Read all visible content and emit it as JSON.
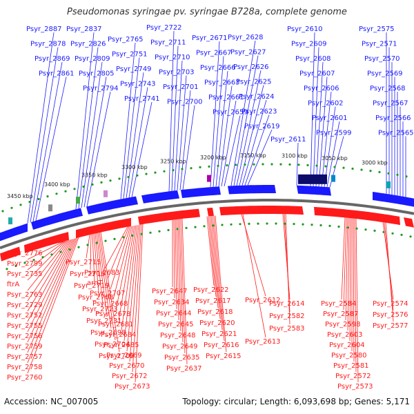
{
  "title": "Pseudomonas syringae pv. syringae B728a, complete genome",
  "accession": "Accession: NC_007005",
  "topology": "Topology: circular; Length: 6,093,698 bp; Genes: 5,171",
  "colors": {
    "forward": "#1a1aff",
    "reverse": "#ff1a1a",
    "backbone": "#999999",
    "ticks": "#1f9a1f"
  },
  "scale_labels": [
    "3450 kbp",
    "3400 kbp",
    "3350 kbp",
    "3300 kbp",
    "3250 kbp",
    "3200 kbp",
    "3150 kbp",
    "3100 kbp",
    "3050 kbp",
    "3000 kbp"
  ],
  "blue_labels": [
    "Psyr_2887",
    "Psyr_2878",
    "Psyr_2869",
    "Psyr_2861",
    "Psyr_2837",
    "Psyr_2826",
    "Psyr_2809",
    "Psyr_2805",
    "Psyr_2794",
    "Psyr_2765",
    "Psyr_2751",
    "Psyr_2749",
    "Psyr_2743",
    "Psyr_2741",
    "Psyr_2722",
    "Psyr_2711",
    "Psyr_2710",
    "Psyr_2703",
    "Psyr_2701",
    "Psyr_2700",
    "Psyr_2671",
    "Psyr_2667",
    "Psyr_2666",
    "Psyr_2663",
    "Psyr_2661",
    "Psyr_2659",
    "Psyr_2628",
    "Psyr_2627",
    "Psyr_2626",
    "Psyr_2625",
    "Psyr_2624",
    "Psyr_2623",
    "Psyr_2619",
    "Psyr_2611",
    "Psyr_2610",
    "Psyr_2609",
    "Psyr_2608",
    "Psyr_2607",
    "Psyr_2606",
    "Psyr_2602",
    "Psyr_2601",
    "Psyr_2599",
    "Psyr_2575",
    "Psyr_2571",
    "Psyr_2570",
    "Psyr_2569",
    "Psyr_2568",
    "Psyr_2567",
    "Psyr_2566",
    "Psyr_2565"
  ],
  "red_labels": [
    "Psyr_2776",
    "Psyr_2799",
    "Psyr_2735",
    "ftrA",
    "Psyr_2763",
    "Psyr_2729",
    "Psyr_2752",
    "Psyr_2755",
    "Psyr_2756",
    "Psyr_2759",
    "Psyr_2757",
    "Psyr_2758",
    "Psyr_2760",
    "Psyr_2715",
    "Psyr_2716",
    "Psyr_2719",
    "Psyr_2708",
    "Psyr_2723",
    "Psyr_2731",
    "Psyr_2698",
    "Psyr_2704",
    "Psyr_2709",
    "Psyr_2683",
    "arnT",
    "Psyr_2707",
    "Psyr_2668",
    "Psyr_2678",
    "Psyr_2681",
    "Psyr_2684",
    "Psyr_2685",
    "Psyr_2669",
    "Psyr_2670",
    "Psyr_2672",
    "Psyr_2673",
    "Psyr_2647",
    "Psyr_2634",
    "Psyr_2644",
    "Psyr_2645",
    "Psyr_2648",
    "Psyr_2649",
    "Psyr_2635",
    "Psyr_2637",
    "Psyr_2622",
    "Psyr_2617",
    "Psyr_2618",
    "Psyr_2620",
    "Psyr_2621",
    "Psyr_2616",
    "Psyr_2615",
    "Psyr_2612",
    "Psyr_2613",
    "Psyr_2614",
    "Psyr_2582",
    "Psyr_2583",
    "Psyr_2584",
    "Psyr_2587",
    "Psyr_2598",
    "Psyr_2603",
    "Psyr_2604",
    "Psyr_2580",
    "Psyr_2581",
    "Psyr_2572",
    "Psyr_2573",
    "Psyr_2574",
    "Psyr_2576",
    "Psyr_2577"
  ]
}
